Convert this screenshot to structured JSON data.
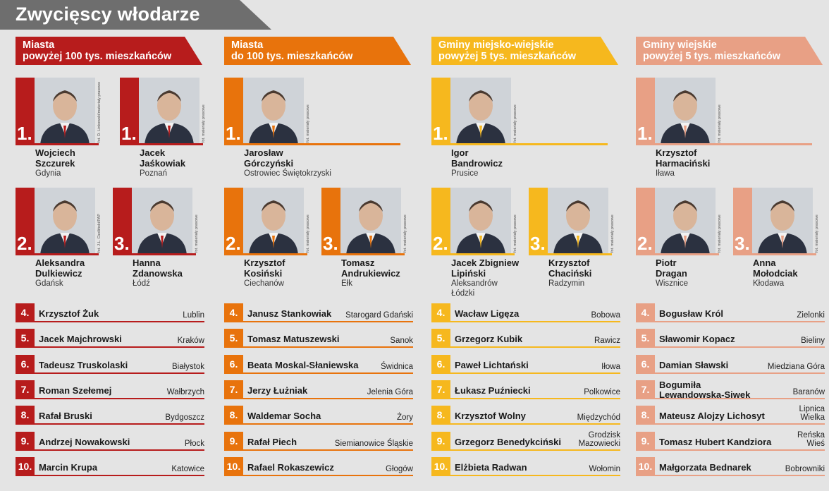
{
  "page_title": "Zwycięscy włodarze",
  "columns": [
    {
      "header": "Miasta\npowyżej 100 tys. mieszkańców",
      "color": "#b71c1c",
      "winners": [
        {
          "rank": "1.",
          "name": "Wojciech\nSzczurek",
          "town": "Gdynia",
          "credit": "fot. D. Linkowski/materiały prasowe"
        },
        {
          "rank": "1.",
          "name": "Jacek\nJaśkowiak",
          "town": "Poznań",
          "credit": "fot. materiały prasowe"
        },
        {
          "rank": "2.",
          "name": "Aleksandra\nDulkiewicz",
          "town": "Gdańsk",
          "credit": "fot. J.L. Cieśliński/PAP"
        },
        {
          "rank": "3.",
          "name": "Hanna\nZdanowska",
          "town": "Łódź",
          "credit": "fot. materiały prasowe"
        }
      ],
      "ranks": [
        {
          "num": "4.",
          "name": "Krzysztof Żuk",
          "town": "Lublin"
        },
        {
          "num": "5.",
          "name": "Jacek Majchrowski",
          "town": "Kraków"
        },
        {
          "num": "6.",
          "name": "Tadeusz Truskolaski",
          "town": "Białystok"
        },
        {
          "num": "7.",
          "name": "Roman Szełemej",
          "town": "Wałbrzych"
        },
        {
          "num": "8.",
          "name": "Rafał Bruski",
          "town": "Bydgoszcz"
        },
        {
          "num": "9.",
          "name": "Andrzej Nowakowski",
          "town": "Płock"
        },
        {
          "num": "10.",
          "name": "Marcin Krupa",
          "town": "Katowice"
        }
      ]
    },
    {
      "header": "Miasta\ndo 100 tys. mieszkańców",
      "color": "#e8730c",
      "winners": [
        {
          "rank": "1.",
          "name": "Jarosław\nGórczyński",
          "town": "Ostrowiec Świętokrzyski",
          "credit": "fot. materiały prasowe"
        },
        {
          "rank": "2.",
          "name": "Krzysztof\nKosiński",
          "town": "Ciechanów",
          "credit": "fot. materiały prasowe"
        },
        {
          "rank": "3.",
          "name": "Tomasz\nAndrukiewicz",
          "town": "Ełk",
          "credit": "fot. materiały prasowe"
        }
      ],
      "ranks": [
        {
          "num": "4.",
          "name": "Janusz Stankowiak",
          "town": "Starogard Gdański"
        },
        {
          "num": "5.",
          "name": "Tomasz Matuszewski",
          "town": "Sanok"
        },
        {
          "num": "6.",
          "name": "Beata Moskal-Słaniewska",
          "town": "Świdnica"
        },
        {
          "num": "7.",
          "name": "Jerzy Łużniak",
          "town": "Jelenia Góra"
        },
        {
          "num": "8.",
          "name": "Waldemar Socha",
          "town": "Żory"
        },
        {
          "num": "9.",
          "name": "Rafał Piech",
          "town": "Siemianowice Śląskie"
        },
        {
          "num": "10.",
          "name": "Rafael Rokaszewicz",
          "town": "Głogów"
        }
      ]
    },
    {
      "header": "Gminy miejsko-wiejskie\npowyżej 5 tys. mieszkańców",
      "color": "#f6b81e",
      "winners": [
        {
          "rank": "1.",
          "name": "Igor\nBandrowicz",
          "town": "Prusice",
          "credit": "fot. materiały prasowe"
        },
        {
          "rank": "2.",
          "name": "Jacek Zbigniew\nLipiński",
          "town": "Aleksandrów\nŁódzki",
          "credit": "fot. materiały prasowe"
        },
        {
          "rank": "3.",
          "name": "Krzysztof\nChaciński",
          "town": "Radzymin",
          "credit": "fot. materiały prasowe"
        }
      ],
      "ranks": [
        {
          "num": "4.",
          "name": "Wacław Ligęza",
          "town": "Bobowa"
        },
        {
          "num": "5.",
          "name": "Grzegorz Kubik",
          "town": "Rawicz"
        },
        {
          "num": "6.",
          "name": "Paweł Lichtański",
          "town": "Iłowa"
        },
        {
          "num": "7.",
          "name": "Łukasz Puźniecki",
          "town": "Polkowice"
        },
        {
          "num": "8.",
          "name": "Krzysztof Wolny",
          "town": "Międzychód"
        },
        {
          "num": "9.",
          "name": "Grzegorz Benedykciński",
          "town": "Grodzisk\nMazowiecki"
        },
        {
          "num": "10.",
          "name": "Elżbieta Radwan",
          "town": "Wołomin"
        }
      ]
    },
    {
      "header": "Gminy wiejskie\npowyżej 5 tys. mieszkańców",
      "color": "#e8a085",
      "winners": [
        {
          "rank": "1.",
          "name": "Krzysztof\nHarmaciński",
          "town": "Iława",
          "credit": "fot. materiały prasowe"
        },
        {
          "rank": "2.",
          "name": "Piotr\nDragan",
          "town": "Wisznice",
          "credit": "fot. materiały prasowe"
        },
        {
          "rank": "3.",
          "name": "Anna\nMołodciak",
          "town": "Kłodawa",
          "credit": "fot. materiały prasowe"
        }
      ],
      "ranks": [
        {
          "num": "4.",
          "name": "Bogusław Król",
          "town": "Zielonki"
        },
        {
          "num": "5.",
          "name": "Sławomir Kopacz",
          "town": "Bieliny"
        },
        {
          "num": "6.",
          "name": "Damian Sławski",
          "town": "Miedziana Góra"
        },
        {
          "num": "7.",
          "name": "Bogumiła\nLewandowska-Siwek",
          "town": "Baranów"
        },
        {
          "num": "8.",
          "name": "Mateusz Alojzy Lichosyt",
          "town": "Lipnica\nWielka"
        },
        {
          "num": "9.",
          "name": "Tomasz Hubert Kandziora",
          "town": "Reńska\nWieś"
        },
        {
          "num": "10.",
          "name": "Małgorzata Bednarek",
          "town": "Bobrowniki"
        }
      ]
    }
  ]
}
